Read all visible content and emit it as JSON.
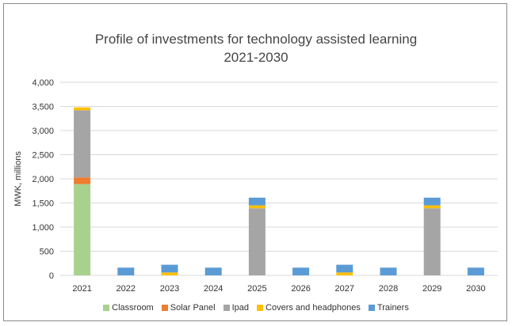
{
  "chart_data": {
    "type": "bar",
    "stacked": true,
    "title": "Profile of investments for technology assisted learning",
    "subtitle": "2021-2030",
    "ylabel": "MWK, millions",
    "xlabel": "",
    "ylim": [
      0,
      4000
    ],
    "yticks": [
      "0",
      "500",
      "1,000",
      "1,500",
      "2,000",
      "2,500",
      "3,000",
      "3,500",
      "4,000"
    ],
    "ytick_values": [
      0,
      500,
      1000,
      1500,
      2000,
      2500,
      3000,
      3500,
      4000
    ],
    "grid": true,
    "legend_position": "bottom",
    "categories": [
      "2021",
      "2022",
      "2023",
      "2024",
      "2025",
      "2026",
      "2027",
      "2028",
      "2029",
      "2030"
    ],
    "series": [
      {
        "name": "Classroom",
        "color": "#a9d18e",
        "values": [
          1890,
          0,
          0,
          0,
          0,
          0,
          0,
          0,
          0,
          0
        ]
      },
      {
        "name": "Solar Panel",
        "color": "#ed7d31",
        "values": [
          140,
          0,
          0,
          0,
          0,
          0,
          0,
          0,
          0,
          0
        ]
      },
      {
        "name": "Ipad",
        "color": "#a5a5a5",
        "values": [
          1390,
          0,
          0,
          0,
          1390,
          0,
          0,
          0,
          1390,
          0
        ]
      },
      {
        "name": "Covers and headphones",
        "color": "#ffc000",
        "values": [
          60,
          0,
          60,
          0,
          60,
          0,
          60,
          0,
          60,
          0
        ]
      },
      {
        "name": "Trainers",
        "color": "#5b9bd5",
        "values": [
          0,
          160,
          160,
          160,
          160,
          160,
          160,
          160,
          160,
          160
        ]
      }
    ]
  }
}
